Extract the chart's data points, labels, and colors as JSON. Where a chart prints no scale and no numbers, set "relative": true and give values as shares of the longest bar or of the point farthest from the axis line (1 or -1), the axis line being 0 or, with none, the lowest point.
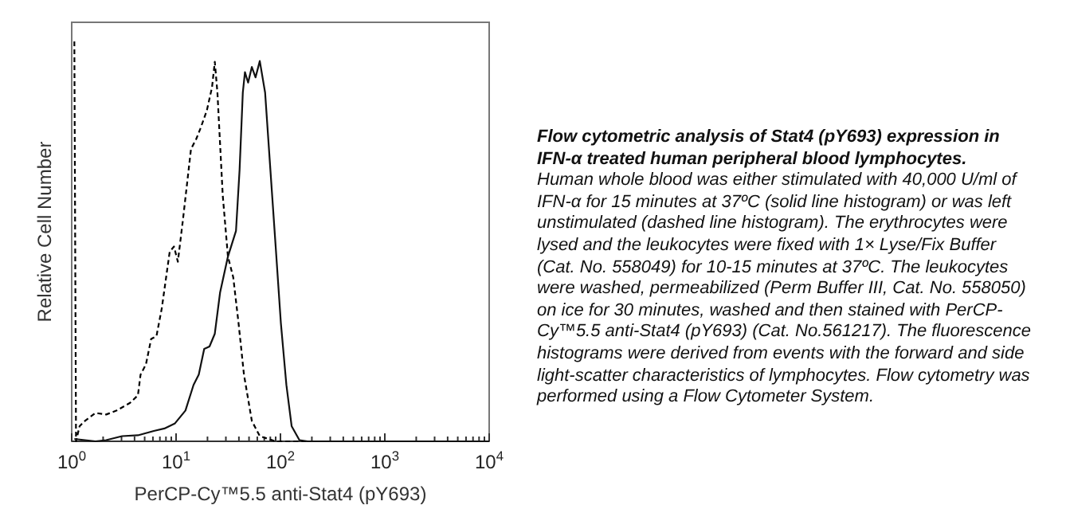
{
  "chart_data": {
    "type": "line",
    "relative": true,
    "log": "x",
    "marker": "none",
    "title": "Flow cytometric analysis of Stat4 (pY693) expression in IFN-α treated human peripheral blood lymphocytes.",
    "annotations": [
      "Human whole blood was either stimulated with 40,000 U/ml of IFN-α for 15 minutes at 37ºC (solid line histogram) or was left unstimulated (dashed line histogram). The erythrocytes were lysed and the leukocytes were fixed with 1× Lyse/Fix Buffer (Cat. No. 558049) for 10-15 minutes at 37ºC. The leukocytes were washed, permeabilized (Perm Buffer III, Cat. No. 558050) on ice for 30 minutes, washed and then stained with PerCP-Cy™5.5 anti-Stat4 (pY693) (Cat. No.561217). The fluorescence histograms were derived from events with the forward and side light-scatter characteristics of lymphocytes. Flow cytometry was performed using a Flow Cytometer System."
    ],
    "xlabel": "PerCP-Cy™5.5 anti-Stat4 (pY693)",
    "ylabel": "Relative Cell Number",
    "xlim": [
      1,
      10000
    ],
    "xticks": [
      {
        "value": 1,
        "label": "10$^{0}$"
      },
      {
        "value": 2,
        "label": null
      },
      {
        "value": 3,
        "label": null
      },
      {
        "value": 4,
        "label": null
      },
      {
        "value": 5,
        "label": null
      },
      {
        "value": 6,
        "label": null
      },
      {
        "value": 7,
        "label": null
      },
      {
        "value": 8,
        "label": null
      },
      {
        "value": 9,
        "label": null
      },
      {
        "value": 10,
        "label": "10$^{1}$"
      },
      {
        "value": 20,
        "label": null
      },
      {
        "value": 30,
        "label": null
      },
      {
        "value": 40,
        "label": null
      },
      {
        "value": 50,
        "label": null
      },
      {
        "value": 60,
        "label": null
      },
      {
        "value": 70,
        "label": null
      },
      {
        "value": 80,
        "label": null
      },
      {
        "value": 90,
        "label": null
      },
      {
        "value": 100,
        "label": "10$^{2}$"
      },
      {
        "value": 200,
        "label": null
      },
      {
        "value": 300,
        "label": null
      },
      {
        "value": 400,
        "label": null
      },
      {
        "value": 500,
        "label": null
      },
      {
        "value": 600,
        "label": null
      },
      {
        "value": 700,
        "label": null
      },
      {
        "value": 800,
        "label": null
      },
      {
        "value": 900,
        "label": null
      },
      {
        "value": 1000,
        "label": "10$^{3}$"
      },
      {
        "value": 2000,
        "label": null
      },
      {
        "value": 3000,
        "label": null
      },
      {
        "value": 4000,
        "label": null
      },
      {
        "value": 5000,
        "label": null
      },
      {
        "value": 6000,
        "label": null
      },
      {
        "value": 7000,
        "label": null
      },
      {
        "value": 8000,
        "label": null
      },
      {
        "value": 9000,
        "label": null
      },
      {
        "value": 10000,
        "label": "10$^{4}$"
      }
    ],
    "series": [
      {
        "color": "#000000",
        "line_style": "dashed",
        "x": [
          1.06,
          1.1,
          1.19,
          1.34,
          1.69,
          2.14,
          2.7,
          3.62,
          4.31,
          4.57,
          5.14,
          5.77,
          6.49,
          7.3,
          8.69,
          9.55,
          10.4,
          11.6,
          13.9,
          15.6,
          17.1,
          19.7,
          22.1,
          23.5,
          24.9,
          28,
          31.4,
          35.3,
          39.7,
          44.7,
          53.2,
          63.4,
          90,
          144,
          10000
        ],
        "values": [
          1.0,
          0,
          0.038,
          0.051,
          0.071,
          0.067,
          0.077,
          0.096,
          0.115,
          0.167,
          0.192,
          0.256,
          0.263,
          0.333,
          0.474,
          0.487,
          0.449,
          0.551,
          0.731,
          0.756,
          0.782,
          0.827,
          0.885,
          0.949,
          0.872,
          0.615,
          0.462,
          0.41,
          0.295,
          0.167,
          0.051,
          0.013,
          0,
          0,
          0
        ]
      },
      {
        "color": "#111111",
        "line_style": "solid",
        "x": [
          1.06,
          1.69,
          2.14,
          3.04,
          4.31,
          6.12,
          7.73,
          9.77,
          12.3,
          14.7,
          16.5,
          18.6,
          20.9,
          23.5,
          26.4,
          31.4,
          37.5,
          40.6,
          43.6,
          45.7,
          49,
          53.2,
          57.7,
          63.4,
          71.3,
          80.1,
          90,
          101,
          114,
          128,
          152,
          182,
          10000
        ],
        "values": [
          0.006,
          0,
          0.003,
          0.013,
          0.015,
          0.026,
          0.032,
          0.045,
          0.077,
          0.141,
          0.167,
          0.231,
          0.237,
          0.269,
          0.372,
          0.462,
          0.526,
          0.679,
          0.872,
          0.923,
          0.897,
          0.936,
          0.91,
          0.951,
          0.872,
          0.679,
          0.487,
          0.295,
          0.141,
          0.038,
          0.003,
          0,
          0
        ]
      }
    ]
  }
}
